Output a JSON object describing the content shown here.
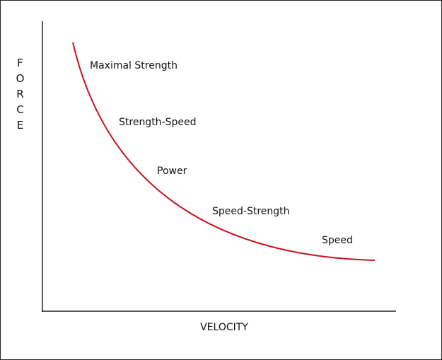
{
  "axes": {
    "y_label": "FORCE",
    "x_label": "VELOCITY"
  },
  "zones": [
    {
      "label": "Maximal Strength"
    },
    {
      "label": "Strength-Speed"
    },
    {
      "label": "Power"
    },
    {
      "label": "Speed-Strength"
    },
    {
      "label": "Speed"
    }
  ]
}
